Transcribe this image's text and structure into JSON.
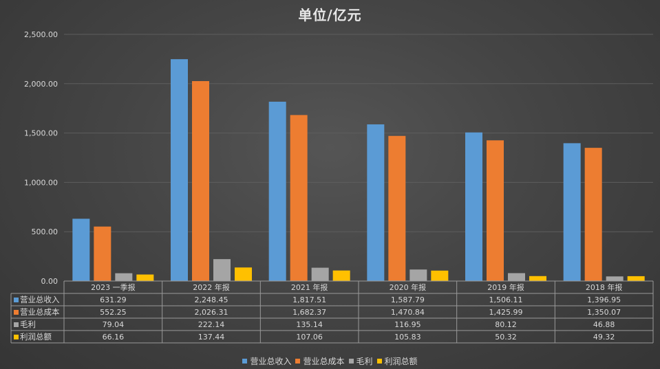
{
  "chart_data": {
    "type": "bar",
    "title": "单位/亿元",
    "categories": [
      "2023 一季报",
      "2022 年报",
      "2021 年报",
      "2020 年报",
      "2019 年报",
      "2018 年报"
    ],
    "ylim": [
      0,
      2500
    ],
    "yticks": [
      "0.00",
      "500.00",
      "1,000.00",
      "1,500.00",
      "2,000.00",
      "2,500.00"
    ],
    "grid": true,
    "legend_position": "bottom",
    "data_table": true,
    "series": [
      {
        "name": "营业总收入",
        "color": "#5b9bd5",
        "values": [
          631.29,
          2248.45,
          1817.51,
          1587.79,
          1506.11,
          1396.95
        ],
        "labels": [
          "631.29",
          "2,248.45",
          "1,817.51",
          "1,587.79",
          "1,506.11",
          "1,396.95"
        ]
      },
      {
        "name": "营业总成本",
        "color": "#ed7d31",
        "values": [
          552.25,
          2026.31,
          1682.37,
          1470.84,
          1425.99,
          1350.07
        ],
        "labels": [
          "552.25",
          "2,026.31",
          "1,682.37",
          "1,470.84",
          "1,425.99",
          "1,350.07"
        ]
      },
      {
        "name": "毛利",
        "color": "#a5a5a5",
        "values": [
          79.04,
          222.14,
          135.14,
          116.95,
          80.12,
          46.88
        ],
        "labels": [
          "79.04",
          "222.14",
          "135.14",
          "116.95",
          "80.12",
          "46.88"
        ]
      },
      {
        "name": "利润总额",
        "color": "#ffc000",
        "values": [
          66.16,
          137.44,
          107.06,
          105.83,
          50.32,
          49.32
        ],
        "labels": [
          "66.16",
          "137.44",
          "107.06",
          "105.83",
          "50.32",
          "49.32"
        ]
      }
    ]
  }
}
